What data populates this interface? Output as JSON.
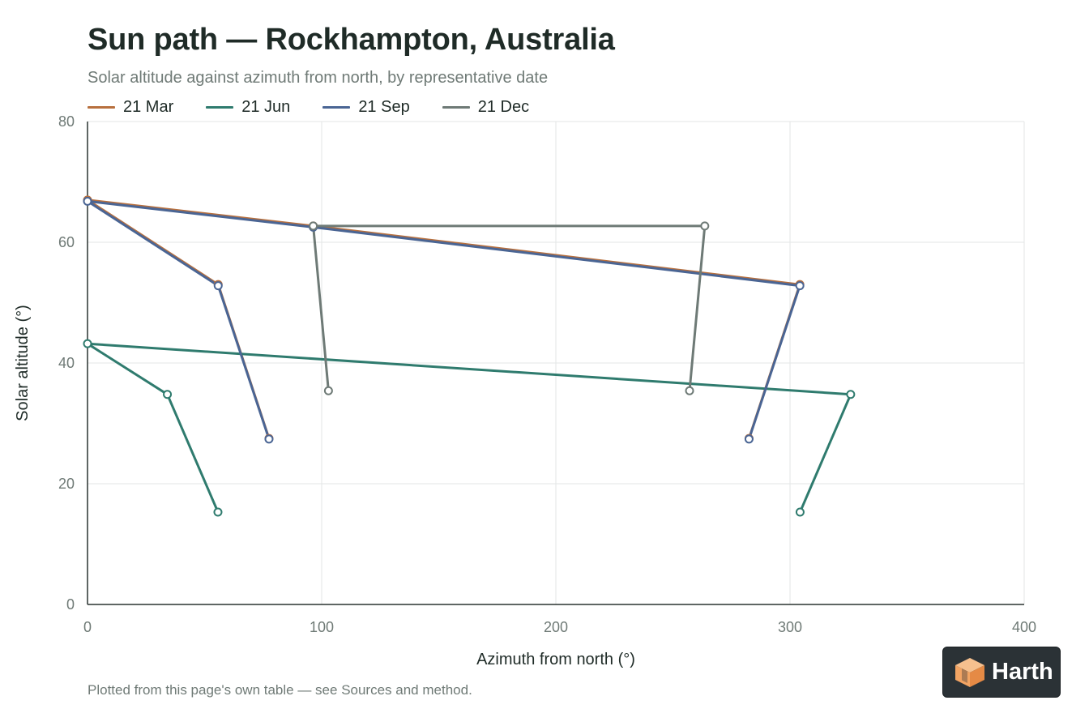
{
  "title": "Sun path — Rockhampton, Australia",
  "subtitle": "Solar altitude against azimuth from north, by representative date",
  "footer": "Plotted from this page's own table — see Sources and method.",
  "logo_text": "Harth",
  "legend": [
    {
      "label": "21 Mar",
      "color": "#b8703e"
    },
    {
      "label": "21 Jun",
      "color": "#2f7b6e"
    },
    {
      "label": "21 Sep",
      "color": "#4a6594"
    },
    {
      "label": "21 Dec",
      "color": "#6e7a76"
    }
  ],
  "chart_data": {
    "type": "line",
    "title": "Sun path — Rockhampton, Australia",
    "subtitle": "Solar altitude against azimuth from north, by representative date",
    "xlabel": "Azimuth from north (°)",
    "ylabel": "Solar altitude (°)",
    "xlim": [
      0,
      400
    ],
    "ylim": [
      0,
      80
    ],
    "xticks": [
      0,
      100,
      200,
      300,
      400
    ],
    "yticks": [
      0,
      20,
      40,
      60,
      80
    ],
    "grid": true,
    "legend_position": "top-left",
    "series": [
      {
        "name": "21 Mar",
        "color": "#b8703e",
        "points": [
          [
            77.5,
            27.5
          ],
          [
            55.8,
            53
          ],
          [
            0,
            67
          ],
          [
            96.4,
            62.7
          ],
          [
            304.2,
            53
          ],
          [
            282.5,
            27.5
          ]
        ]
      },
      {
        "name": "21 Jun",
        "color": "#2f7b6e",
        "points": [
          [
            55.7,
            15.3
          ],
          [
            34.1,
            34.8
          ],
          [
            0,
            43.2
          ],
          [
            325.9,
            34.8
          ],
          [
            304.3,
            15.3
          ]
        ]
      },
      {
        "name": "21 Sep",
        "color": "#4a6594",
        "points": [
          [
            77.5,
            27.4
          ],
          [
            55.8,
            52.8
          ],
          [
            0,
            66.8
          ],
          [
            96.4,
            62.5
          ],
          [
            304.2,
            52.8
          ],
          [
            282.5,
            27.4
          ]
        ]
      },
      {
        "name": "21 Dec",
        "color": "#6e7a76",
        "points": [
          [
            102.9,
            35.4
          ],
          [
            96.4,
            62.7
          ],
          [
            263.6,
            62.7
          ],
          [
            257.1,
            35.4
          ]
        ]
      }
    ]
  }
}
